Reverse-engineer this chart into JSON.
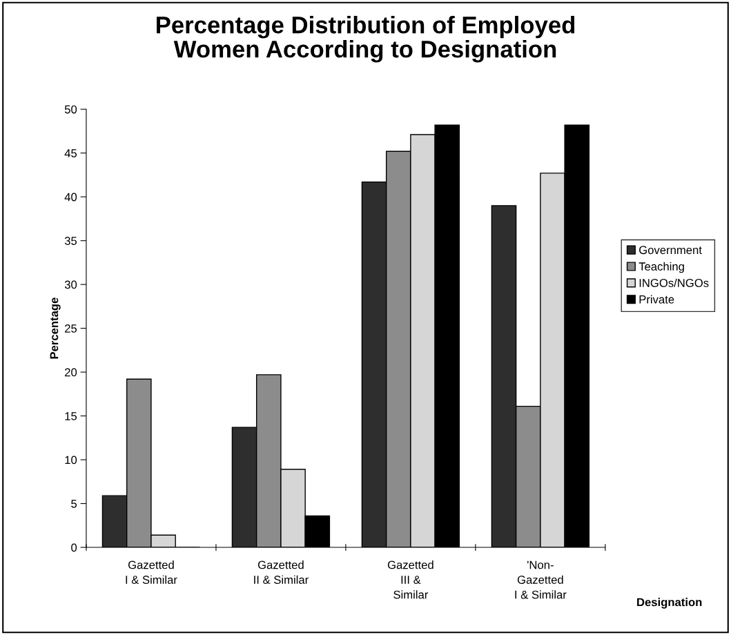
{
  "chart_data": {
    "type": "bar",
    "title": "Percentage Distribution of Employed\nWomen According to Designation",
    "xlabel": "Designation",
    "ylabel": "Percentage",
    "categories": [
      "Gazetted\nI & Similar",
      "Gazetted\nII & Similar",
      "Gazetted\nIII &\nSimilar",
      "'Non-\nGazetted\nI & Similar"
    ],
    "series": [
      {
        "name": "Government",
        "color": "#2e2e2e",
        "values": [
          5.9,
          13.7,
          41.7,
          39.0
        ]
      },
      {
        "name": "Teaching",
        "color": "#8c8c8c",
        "values": [
          19.2,
          19.7,
          45.2,
          16.1
        ]
      },
      {
        "name": "INGOs/NGOs",
        "color": "#d6d6d6",
        "values": [
          1.4,
          8.9,
          47.1,
          42.7
        ]
      },
      {
        "name": "Private",
        "color": "#000000",
        "values": [
          0,
          3.6,
          48.2,
          48.2
        ]
      }
    ],
    "ylim": [
      0,
      50
    ],
    "yticks": [
      0,
      5,
      10,
      15,
      20,
      25,
      30,
      35,
      40,
      45,
      50
    ],
    "grid": false,
    "legend": "right"
  }
}
